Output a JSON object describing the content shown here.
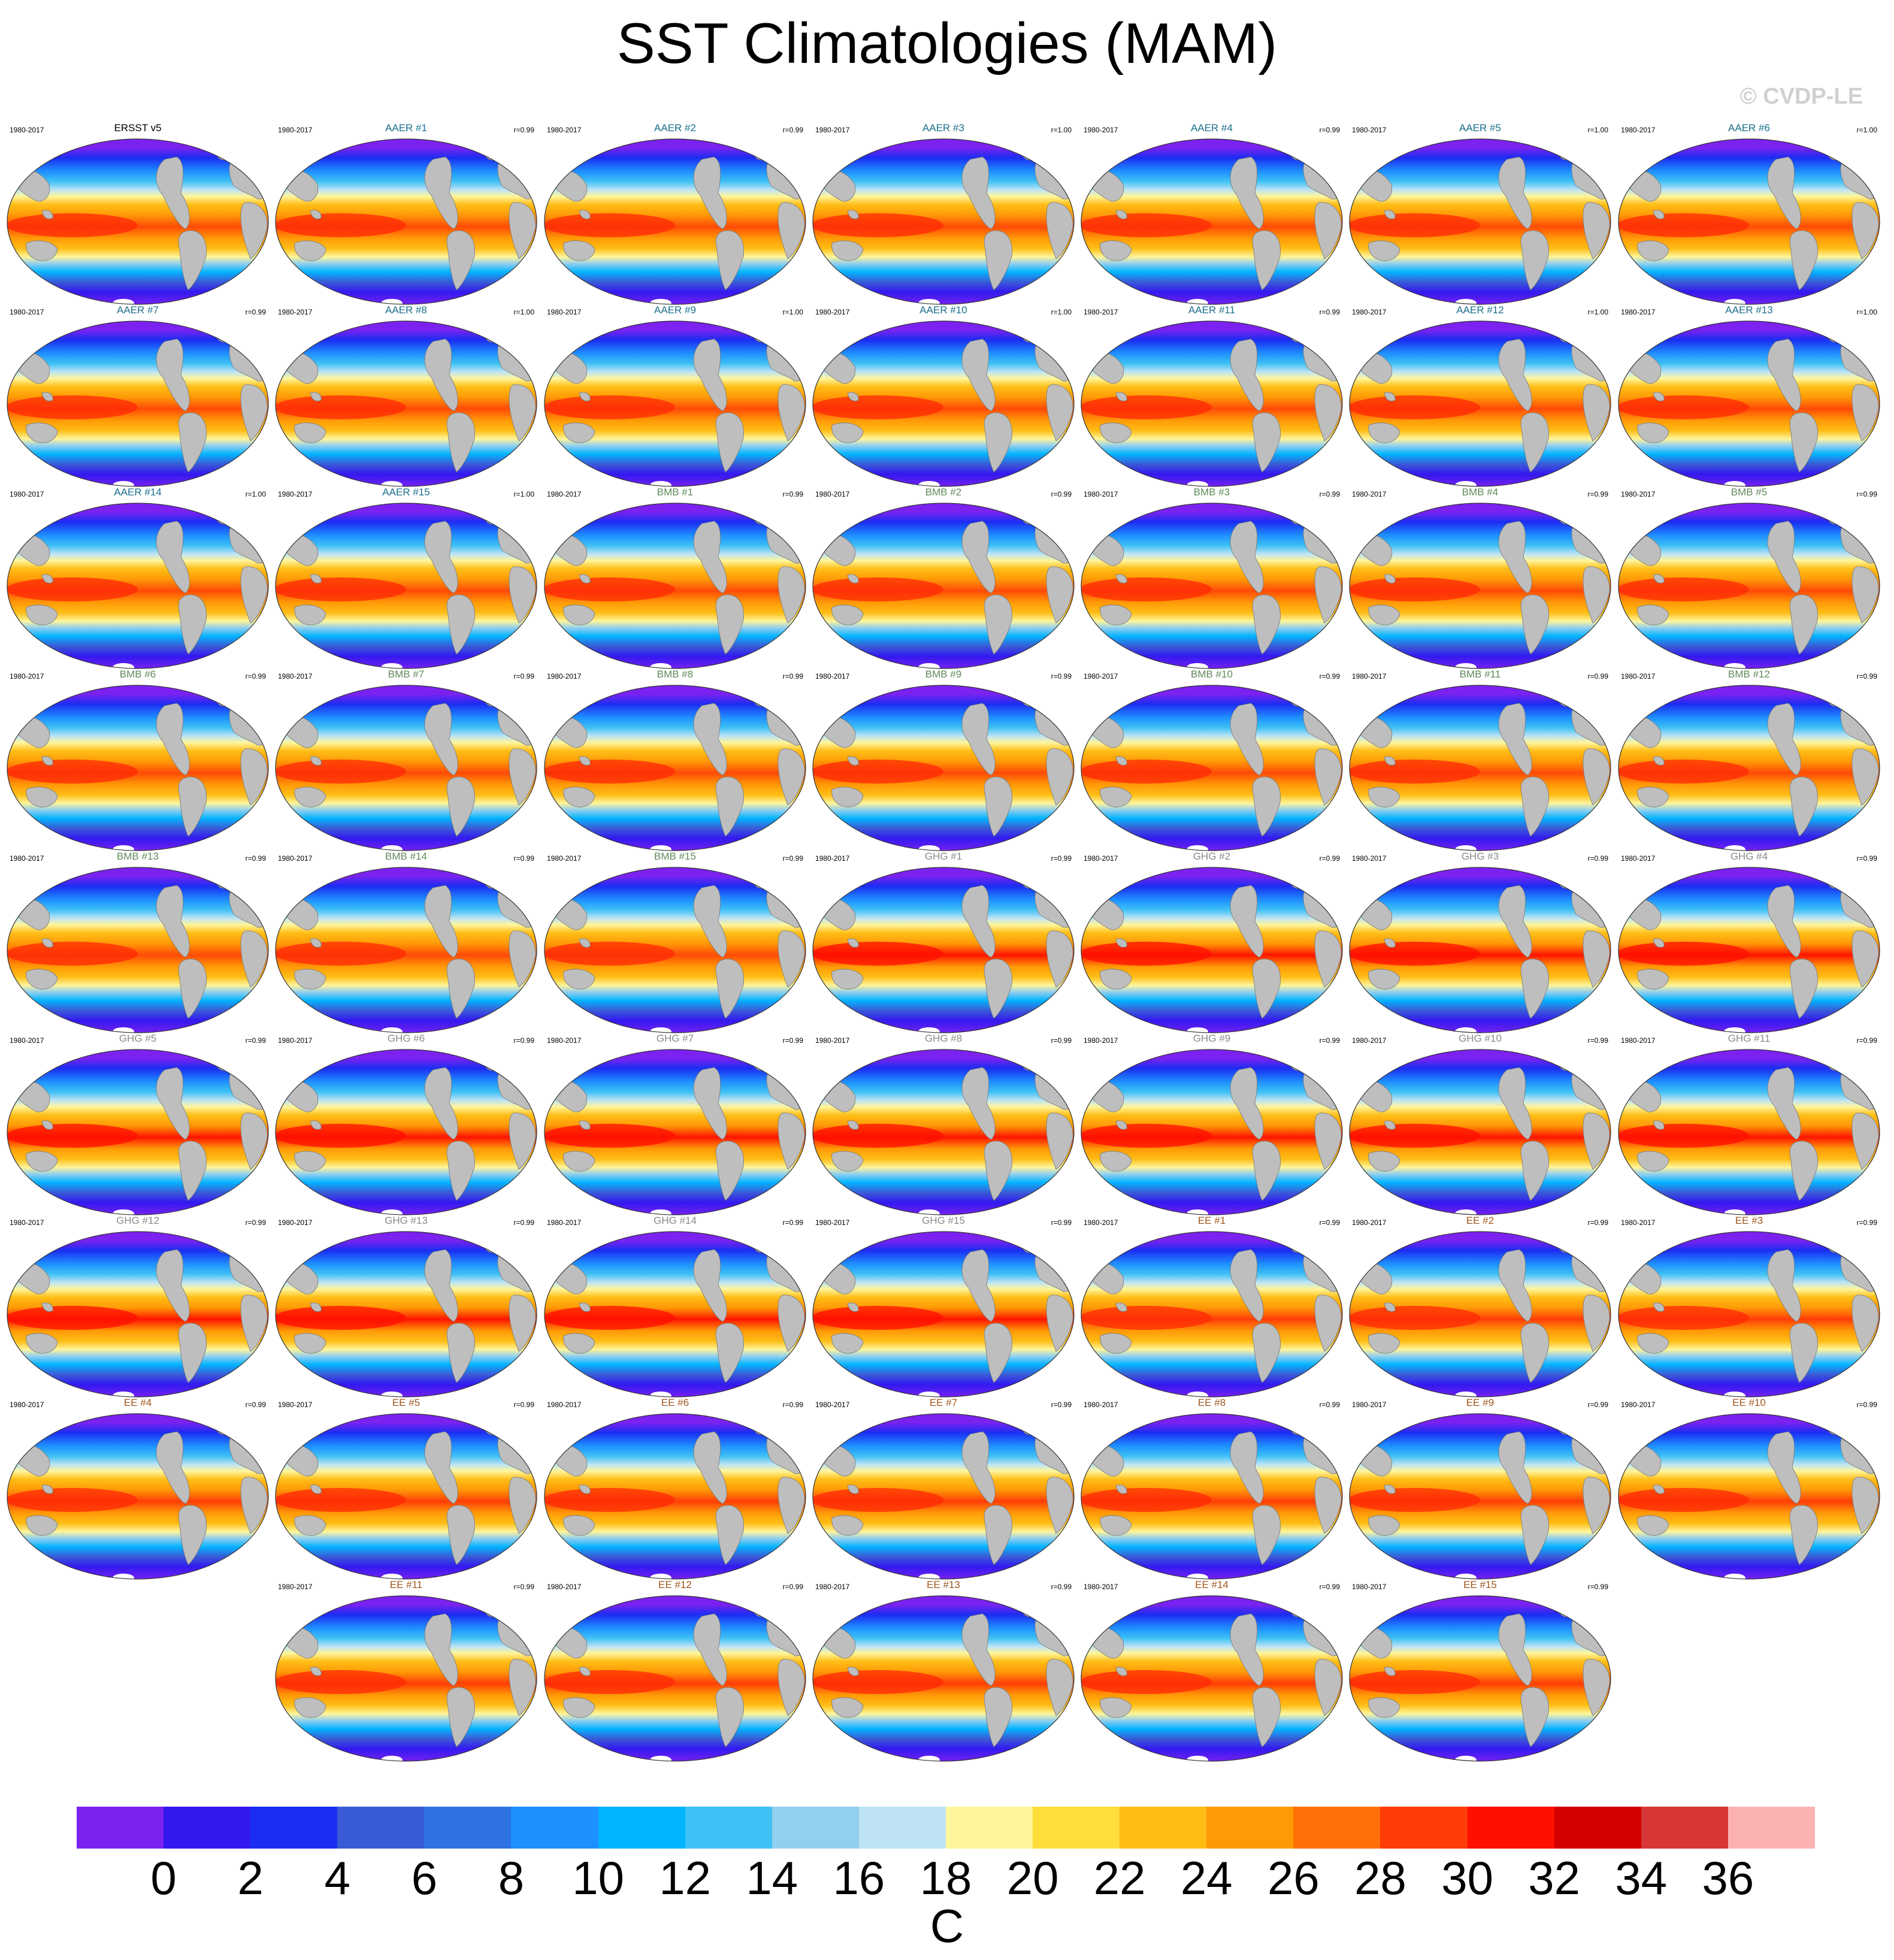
{
  "title": "SST Climatologies (MAM)",
  "credit": "© CVDP-LE",
  "chart_data": {
    "type": "heatmap",
    "title": "SST Climatologies (MAM)",
    "variable": "SST",
    "season": "MAM",
    "units": "C",
    "colorbar": {
      "ticks": [
        "0",
        "2",
        "4",
        "6",
        "8",
        "10",
        "12",
        "14",
        "16",
        "18",
        "20",
        "22",
        "24",
        "26",
        "28",
        "30",
        "32",
        "34",
        "36"
      ],
      "colors": [
        "#7b22f0",
        "#3319f0",
        "#1b2df2",
        "#3a5bd6",
        "#2f72e4",
        "#1e90ff",
        "#03b4ff",
        "#3ec1f5",
        "#93cfee",
        "#bde3f5",
        "#fff59a",
        "#ffdd3a",
        "#ffbd16",
        "#ff9a07",
        "#ff7107",
        "#ff3d07",
        "#ff0f00",
        "#d40000",
        "#d63636",
        "#fdb2b2"
      ]
    },
    "panels": [
      {
        "label": "ERSST v5",
        "group": "obs",
        "period": "1980-2017",
        "r": ""
      },
      {
        "label": "AAER #1",
        "group": "AAER",
        "period": "1980-2017",
        "r": "r=0.99"
      },
      {
        "label": "AAER #2",
        "group": "AAER",
        "period": "1980-2017",
        "r": "r=0.99"
      },
      {
        "label": "AAER #3",
        "group": "AAER",
        "period": "1980-2017",
        "r": "r=1.00"
      },
      {
        "label": "AAER #4",
        "group": "AAER",
        "period": "1980-2017",
        "r": "r=0.99"
      },
      {
        "label": "AAER #5",
        "group": "AAER",
        "period": "1980-2017",
        "r": "r=1.00"
      },
      {
        "label": "AAER #6",
        "group": "AAER",
        "period": "1980-2017",
        "r": "r=1.00"
      },
      {
        "label": "AAER #7",
        "group": "AAER",
        "period": "1980-2017",
        "r": "r=0.99"
      },
      {
        "label": "AAER #8",
        "group": "AAER",
        "period": "1980-2017",
        "r": "r=1.00"
      },
      {
        "label": "AAER #9",
        "group": "AAER",
        "period": "1980-2017",
        "r": "r=1.00"
      },
      {
        "label": "AAER #10",
        "group": "AAER",
        "period": "1980-2017",
        "r": "r=1.00"
      },
      {
        "label": "AAER #11",
        "group": "AAER",
        "period": "1980-2017",
        "r": "r=0.99"
      },
      {
        "label": "AAER #12",
        "group": "AAER",
        "period": "1980-2017",
        "r": "r=1.00"
      },
      {
        "label": "AAER #13",
        "group": "AAER",
        "period": "1980-2017",
        "r": "r=1.00"
      },
      {
        "label": "AAER #14",
        "group": "AAER",
        "period": "1980-2017",
        "r": "r=1.00"
      },
      {
        "label": "AAER #15",
        "group": "AAER",
        "period": "1980-2017",
        "r": "r=1.00"
      },
      {
        "label": "BMB #1",
        "group": "BMB",
        "period": "1980-2017",
        "r": "r=0.99"
      },
      {
        "label": "BMB #2",
        "group": "BMB",
        "period": "1980-2017",
        "r": "r=0.99"
      },
      {
        "label": "BMB #3",
        "group": "BMB",
        "period": "1980-2017",
        "r": "r=0.99"
      },
      {
        "label": "BMB #4",
        "group": "BMB",
        "period": "1980-2017",
        "r": "r=0.99"
      },
      {
        "label": "BMB #5",
        "group": "BMB",
        "period": "1980-2017",
        "r": "r=0.99"
      },
      {
        "label": "BMB #6",
        "group": "BMB",
        "period": "1980-2017",
        "r": "r=0.99"
      },
      {
        "label": "BMB #7",
        "group": "BMB",
        "period": "1980-2017",
        "r": "r=0.99"
      },
      {
        "label": "BMB #8",
        "group": "BMB",
        "period": "1980-2017",
        "r": "r=0.99"
      },
      {
        "label": "BMB #9",
        "group": "BMB",
        "period": "1980-2017",
        "r": "r=0.99"
      },
      {
        "label": "BMB #10",
        "group": "BMB",
        "period": "1980-2017",
        "r": "r=0.99"
      },
      {
        "label": "BMB #11",
        "group": "BMB",
        "period": "1980-2017",
        "r": "r=0.99"
      },
      {
        "label": "BMB #12",
        "group": "BMB",
        "period": "1980-2017",
        "r": "r=0.99"
      },
      {
        "label": "BMB #13",
        "group": "BMB",
        "period": "1980-2017",
        "r": "r=0.99"
      },
      {
        "label": "BMB #14",
        "group": "BMB",
        "period": "1980-2017",
        "r": "r=0.99"
      },
      {
        "label": "BMB #15",
        "group": "BMB",
        "period": "1980-2017",
        "r": "r=0.99"
      },
      {
        "label": "GHG #1",
        "group": "GHG",
        "period": "1980-2017",
        "r": "r=0.99"
      },
      {
        "label": "GHG #2",
        "group": "GHG",
        "period": "1980-2017",
        "r": "r=0.99"
      },
      {
        "label": "GHG #3",
        "group": "GHG",
        "period": "1980-2017",
        "r": "r=0.99"
      },
      {
        "label": "GHG #4",
        "group": "GHG",
        "period": "1980-2017",
        "r": "r=0.99"
      },
      {
        "label": "GHG #5",
        "group": "GHG",
        "period": "1980-2017",
        "r": "r=0.99"
      },
      {
        "label": "GHG #6",
        "group": "GHG",
        "period": "1980-2017",
        "r": "r=0.99"
      },
      {
        "label": "GHG #7",
        "group": "GHG",
        "period": "1980-2017",
        "r": "r=0.99"
      },
      {
        "label": "GHG #8",
        "group": "GHG",
        "period": "1980-2017",
        "r": "r=0.99"
      },
      {
        "label": "GHG #9",
        "group": "GHG",
        "period": "1980-2017",
        "r": "r=0.99"
      },
      {
        "label": "GHG #10",
        "group": "GHG",
        "period": "1980-2017",
        "r": "r=0.99"
      },
      {
        "label": "GHG #11",
        "group": "GHG",
        "period": "1980-2017",
        "r": "r=0.99"
      },
      {
        "label": "GHG #12",
        "group": "GHG",
        "period": "1980-2017",
        "r": "r=0.99"
      },
      {
        "label": "GHG #13",
        "group": "GHG",
        "period": "1980-2017",
        "r": "r=0.99"
      },
      {
        "label": "GHG #14",
        "group": "GHG",
        "period": "1980-2017",
        "r": "r=0.99"
      },
      {
        "label": "GHG #15",
        "group": "GHG",
        "period": "1980-2017",
        "r": "r=0.99"
      },
      {
        "label": "EE #1",
        "group": "EE",
        "period": "1980-2017",
        "r": "r=0.99"
      },
      {
        "label": "EE #2",
        "group": "EE",
        "period": "1980-2017",
        "r": "r=0.99"
      },
      {
        "label": "EE #3",
        "group": "EE",
        "period": "1980-2017",
        "r": "r=0.99"
      },
      {
        "label": "EE #4",
        "group": "EE",
        "period": "1980-2017",
        "r": "r=0.99"
      },
      {
        "label": "EE #5",
        "group": "EE",
        "period": "1980-2017",
        "r": "r=0.99"
      },
      {
        "label": "EE #6",
        "group": "EE",
        "period": "1980-2017",
        "r": "r=0.99"
      },
      {
        "label": "EE #7",
        "group": "EE",
        "period": "1980-2017",
        "r": "r=0.99"
      },
      {
        "label": "EE #8",
        "group": "EE",
        "period": "1980-2017",
        "r": "r=0.99"
      },
      {
        "label": "EE #9",
        "group": "EE",
        "period": "1980-2017",
        "r": "r=0.99"
      },
      {
        "label": "EE #10",
        "group": "EE",
        "period": "1980-2017",
        "r": "r=0.99"
      },
      {
        "label": "EE #11",
        "group": "EE",
        "period": "1980-2017",
        "r": "r=0.99"
      },
      {
        "label": "EE #12",
        "group": "EE",
        "period": "1980-2017",
        "r": "r=0.99"
      },
      {
        "label": "EE #13",
        "group": "EE",
        "period": "1980-2017",
        "r": "r=0.99"
      },
      {
        "label": "EE #14",
        "group": "EE",
        "period": "1980-2017",
        "r": "r=0.99"
      },
      {
        "label": "EE #15",
        "group": "EE",
        "period": "1980-2017",
        "r": "r=0.99"
      }
    ],
    "group_colors": {
      "obs": "#000000",
      "AAER": "#1a6f8c",
      "BMB": "#5f8a5a",
      "GHG": "#8a8a8a",
      "EE": "#a0561e"
    }
  }
}
